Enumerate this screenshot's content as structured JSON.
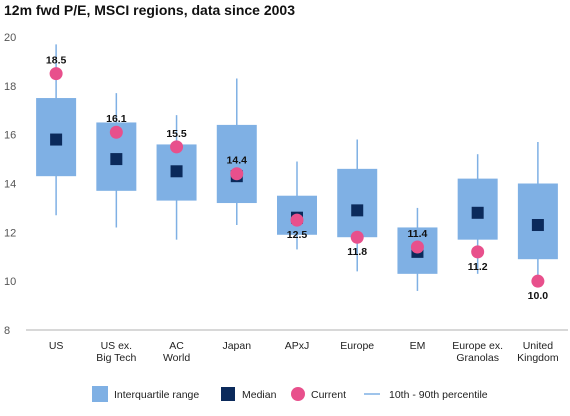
{
  "chart_data": {
    "type": "box",
    "title": "12m fwd P/E, MSCI regions, data since 2003",
    "ylim": [
      8,
      20
    ],
    "yticks": [
      8,
      10,
      12,
      14,
      16,
      18,
      20
    ],
    "grid": false,
    "legend_placement": "bottom",
    "categories": [
      [
        "US"
      ],
      [
        "US ex.",
        "Big Tech"
      ],
      [
        "AC",
        "World"
      ],
      [
        "Japan"
      ],
      [
        "APxJ"
      ],
      [
        "Europe"
      ],
      [
        "EM"
      ],
      [
        "Europe ex.",
        "Granolas"
      ],
      [
        "United",
        "Kingdom"
      ]
    ],
    "series": [
      {
        "name": "10th - 90th percentile",
        "low": [
          12.7,
          12.2,
          11.7,
          12.3,
          11.3,
          10.4,
          9.6,
          10.3,
          10.0
        ],
        "high": [
          19.7,
          17.7,
          16.8,
          18.3,
          14.9,
          15.8,
          13.0,
          15.2,
          15.7
        ]
      },
      {
        "name": "Interquartile range",
        "q1": [
          14.3,
          13.7,
          13.3,
          13.2,
          11.9,
          11.8,
          10.3,
          11.7,
          10.9
        ],
        "q3": [
          17.5,
          16.5,
          15.6,
          16.4,
          13.5,
          14.6,
          12.2,
          14.2,
          14.0
        ]
      },
      {
        "name": "Median",
        "values": [
          15.8,
          15.0,
          14.5,
          14.3,
          12.6,
          12.9,
          11.2,
          12.8,
          12.3
        ]
      },
      {
        "name": "Current",
        "values": [
          18.5,
          16.1,
          15.5,
          14.4,
          12.5,
          11.8,
          11.4,
          11.2,
          10.0
        ]
      }
    ],
    "current_labels": [
      "18.5",
      "16.1",
      "15.5",
      "14.4",
      "12.5",
      "11.8",
      "11.4",
      "11.2",
      "10.0"
    ],
    "label_position": [
      "above",
      "above",
      "above",
      "above",
      "below",
      "below",
      "above",
      "below",
      "below"
    ],
    "colors": {
      "box": "#7fb0e4",
      "median": "#0b2a5b",
      "current": "#e8508c",
      "whisker": "#7fb0e4",
      "axis": "#555555"
    }
  }
}
